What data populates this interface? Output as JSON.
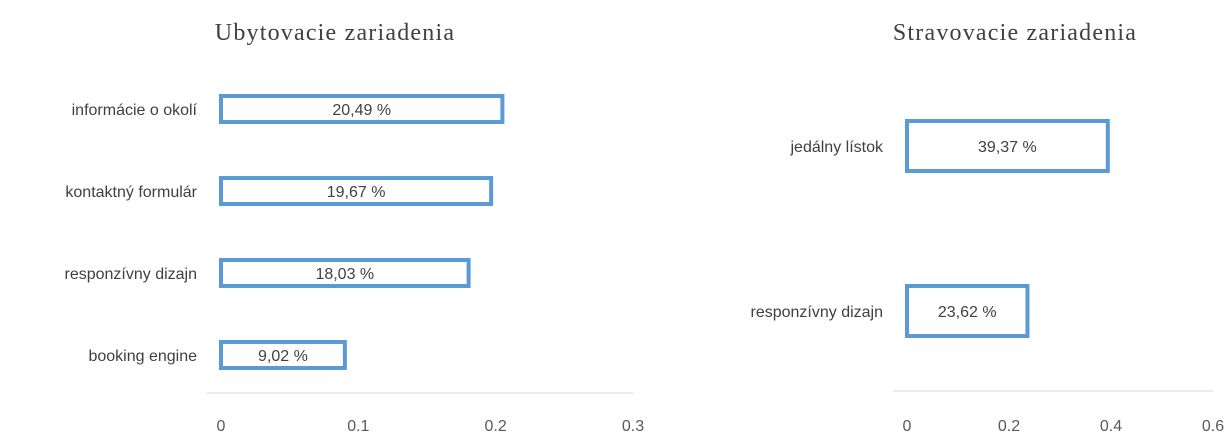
{
  "chart_data": [
    {
      "type": "bar",
      "orientation": "horizontal",
      "title": "Ubytovacie zariadenia",
      "categories": [
        "informácie o okolí",
        "kontaktný formulár",
        "responzívny dizajn",
        "booking engine"
      ],
      "values": [
        0.2049,
        0.1967,
        0.1803,
        0.0902
      ],
      "data_labels": [
        "20,49 %",
        "19,67 %",
        "18,03 %",
        "9,02 %"
      ],
      "xlim": [
        0,
        0.3
      ],
      "x_ticks": [
        "0",
        "0.1",
        "0.2",
        "0.3"
      ],
      "grid": false,
      "legend": "none",
      "bar_style": "outline",
      "bar_color": "#5b9bd5"
    },
    {
      "type": "bar",
      "orientation": "horizontal",
      "title": "Stravovacie zariadenia",
      "categories": [
        "jedálny lístok",
        "responzívny dizajn"
      ],
      "values": [
        0.3937,
        0.2362
      ],
      "data_labels": [
        "39,37 %",
        "23,62 %"
      ],
      "xlim": [
        0,
        0.6
      ],
      "x_ticks": [
        "0",
        "0.2",
        "0.4",
        "0.6"
      ],
      "grid": false,
      "legend": "none",
      "bar_style": "outline",
      "bar_color": "#5b9bd5"
    }
  ]
}
